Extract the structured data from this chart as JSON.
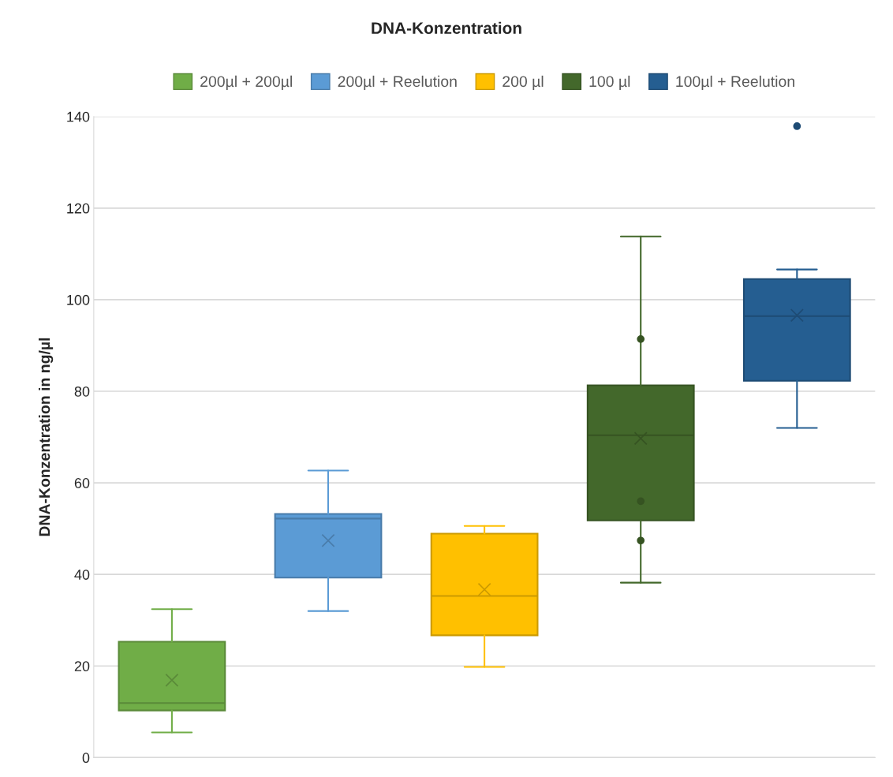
{
  "chart_data": {
    "type": "box",
    "title": "DNA-Konzentration",
    "ylabel": "DNA-Konzentration in ng/µl",
    "categories": [
      null
    ],
    "series": [
      {
        "name": "200µl + 200µl",
        "color": "#70ad47",
        "boxes": [
          {
            "low": 5.5,
            "q1": 10.3,
            "median": 11.9,
            "q3": 25.3,
            "high": 32.4,
            "mean": 16.9
          }
        ]
      },
      {
        "name": "200µl + Reelution",
        "color": "#5b9bd5",
        "boxes": [
          {
            "low": 32.0,
            "q1": 39.3,
            "median": 52.2,
            "q3": 53.2,
            "high": 62.7,
            "mean": 47.4
          }
        ]
      },
      {
        "name": "200 µl",
        "color": "#ffc000",
        "boxes": [
          {
            "low": 19.8,
            "q1": 26.7,
            "median": 35.3,
            "q3": 48.9,
            "high": 50.6,
            "mean": 36.7
          }
        ]
      },
      {
        "name": "100 µl",
        "color": "#43682b",
        "boxes": [
          {
            "low": 38.2,
            "q1": 51.8,
            "median": 70.4,
            "q3": 81.3,
            "high": 113.8,
            "mean": 69.7,
            "outliers": [
              91.4,
              56.0,
              47.4
            ]
          }
        ]
      },
      {
        "name": "100µl + Reelution",
        "color": "#255e91",
        "boxes": [
          {
            "low": 72.0,
            "q1": 82.3,
            "median": 96.4,
            "q3": 104.5,
            "high": 106.6,
            "mean": 96.6,
            "outliers": [
              137.9
            ]
          }
        ]
      }
    ],
    "ylim": [
      0,
      140
    ],
    "yticks": [
      0,
      20,
      40,
      60,
      80,
      100,
      120,
      140
    ],
    "grid": "y",
    "legend": "top"
  }
}
